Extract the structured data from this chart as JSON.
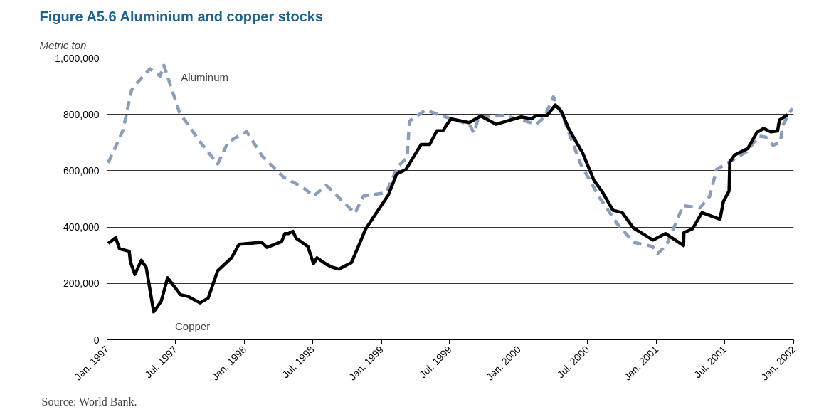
{
  "chart_data": {
    "type": "line",
    "title": "Figure A5.6 Aluminium and copper stocks",
    "ylabel": "Metric ton",
    "annotations": [
      "Source: World Bank."
    ],
    "xlim": [
      "1997-01-01",
      "2002-01-01"
    ],
    "xticks": [
      {
        "value": "1997-01-01",
        "label": "Jan. 1997"
      },
      {
        "value": "1997-07-01",
        "label": "Jul. 1997"
      },
      {
        "value": "1998-01-01",
        "label": "Jan. 1998"
      },
      {
        "value": "1998-07-01",
        "label": "Jul. 1998"
      },
      {
        "value": "1999-01-01",
        "label": "Jan. 1999"
      },
      {
        "value": "1999-07-01",
        "label": "Jul. 1999"
      },
      {
        "value": "2000-01-01",
        "label": "Jan. 2000"
      },
      {
        "value": "2000-07-01",
        "label": "Jul. 2000"
      },
      {
        "value": "2001-01-01",
        "label": "Jan. 2001"
      },
      {
        "value": "2001-07-01",
        "label": "Jul. 2001"
      },
      {
        "value": "2002-01-01",
        "label": "Jan. 2002"
      }
    ],
    "ylim": [
      0,
      1000000
    ],
    "yticks": [
      0,
      {
        "value": 200000,
        "label": "200,000"
      },
      {
        "value": 400000,
        "label": "400,000"
      },
      {
        "value": 600000,
        "label": "600,000"
      },
      {
        "value": 800000,
        "label": "800,000"
      },
      {
        "value": 1000000,
        "label": "1,000,000"
      }
    ],
    "grid": "y",
    "marker": "none",
    "series": [
      {
        "name": "Aluminum",
        "color": "#8a9dba",
        "line_style": "dashed",
        "x": [
          "1997-01-04",
          "1997-02-12",
          "1997-03-07",
          "1997-03-13",
          "1997-04-25",
          "1997-05-22",
          "1997-06-01",
          "1997-07-13",
          "1997-09-09",
          "1997-10-22",
          "1997-11-19",
          "1998-01-07",
          "1998-02-18",
          "1998-04-16",
          "1998-06-05",
          "1998-07-04",
          "1998-08-07",
          "1998-10-22",
          "1998-11-14",
          "1999-01-13",
          "1999-02-14",
          "1999-03-10",
          "1999-03-16",
          "1999-04-29",
          "1999-06-07",
          "1999-08-22",
          "1999-09-04",
          "1999-09-16",
          "1999-11-25",
          "2000-02-16",
          "2000-03-08",
          "2000-04-02",
          "2000-04-25",
          "2000-06-14",
          "2000-08-04",
          "2000-09-19",
          "2000-11-01",
          "2000-12-22",
          "2001-01-04",
          "2001-01-28",
          "2001-03-13",
          "2001-04-27",
          "2001-05-22",
          "2001-06-10",
          "2001-07-10",
          "2001-08-29",
          "2001-10-01",
          "2001-10-19",
          "2001-11-07",
          "2001-11-27",
          "2001-12-02",
          "2001-12-28"
        ],
        "values": [
          628000,
          742000,
          885000,
          898000,
          962000,
          936000,
          974000,
          805000,
          696000,
          624000,
          702000,
          739000,
          651000,
          576000,
          542000,
          510000,
          548000,
          449000,
          510000,
          522000,
          616000,
          647000,
          776000,
          816000,
          796000,
          765000,
          734000,
          791000,
          796000,
          765000,
          788000,
          862000,
          799000,
          622000,
          502000,
          411000,
          346000,
          331000,
          305000,
          337000,
          476000,
          468000,
          508000,
          605000,
          628000,
          668000,
          723000,
          719000,
          690000,
          702000,
          759000,
          822000
        ]
      },
      {
        "name": "Copper",
        "color": "#000000",
        "line_style": "solid",
        "x": [
          "1997-01-04",
          "1997-01-24",
          "1997-02-03",
          "1997-03-01",
          "1997-03-04",
          "1997-03-16",
          "1997-04-02",
          "1997-04-15",
          "1997-05-05",
          "1997-05-25",
          "1997-06-11",
          "1997-07-15",
          "1997-08-04",
          "1997-09-05",
          "1997-09-27",
          "1997-10-22",
          "1997-11-28",
          "1997-12-18",
          "1998-02-16",
          "1998-03-02",
          "1998-04-10",
          "1998-04-19",
          "1998-04-28",
          "1998-05-10",
          "1998-05-19",
          "1998-06-19",
          "1998-07-04",
          "1998-07-13",
          "1998-08-07",
          "1998-08-24",
          "1998-09-10",
          "1998-10-13",
          "1998-11-20",
          "1999-01-19",
          "1999-02-10",
          "1999-03-07",
          "1999-04-16",
          "1999-05-09",
          "1999-05-28",
          "1999-06-13",
          "1999-07-04",
          "1999-08-22",
          "1999-09-22",
          "1999-11-01",
          "2000-01-07",
          "2000-02-04",
          "2000-02-16",
          "2000-03-16",
          "2000-04-07",
          "2000-04-23",
          "2000-05-13",
          "2000-06-19",
          "2000-07-19",
          "2000-08-10",
          "2000-09-07",
          "2000-10-02",
          "2000-11-01",
          "2000-12-23",
          "2001-01-25",
          "2001-03-14",
          "2001-03-15",
          "2001-04-07",
          "2001-05-02",
          "2001-06-19",
          "2001-06-28",
          "2001-07-13",
          "2001-07-15",
          "2001-07-28",
          "2001-09-01",
          "2001-09-25",
          "2001-10-13",
          "2001-11-01",
          "2001-11-19",
          "2001-11-24",
          "2001-12-16"
        ],
        "values": [
          342000,
          362000,
          323000,
          314000,
          277000,
          232000,
          282000,
          257000,
          99000,
          137000,
          220000,
          160000,
          154000,
          131000,
          148000,
          245000,
          291000,
          339000,
          346000,
          328000,
          348000,
          377000,
          377000,
          385000,
          360000,
          331000,
          270000,
          291000,
          268000,
          257000,
          251000,
          274000,
          394000,
          514000,
          588000,
          605000,
          693000,
          693000,
          742000,
          742000,
          784000,
          771000,
          794000,
          765000,
          791000,
          784000,
          796000,
          796000,
          833000,
          811000,
          748000,
          662000,
          565000,
          525000,
          460000,
          451000,
          396000,
          354000,
          377000,
          334000,
          380000,
          394000,
          451000,
          428000,
          491000,
          528000,
          631000,
          656000,
          679000,
          736000,
          750000,
          738000,
          741000,
          780000,
          799000
        ]
      }
    ]
  }
}
